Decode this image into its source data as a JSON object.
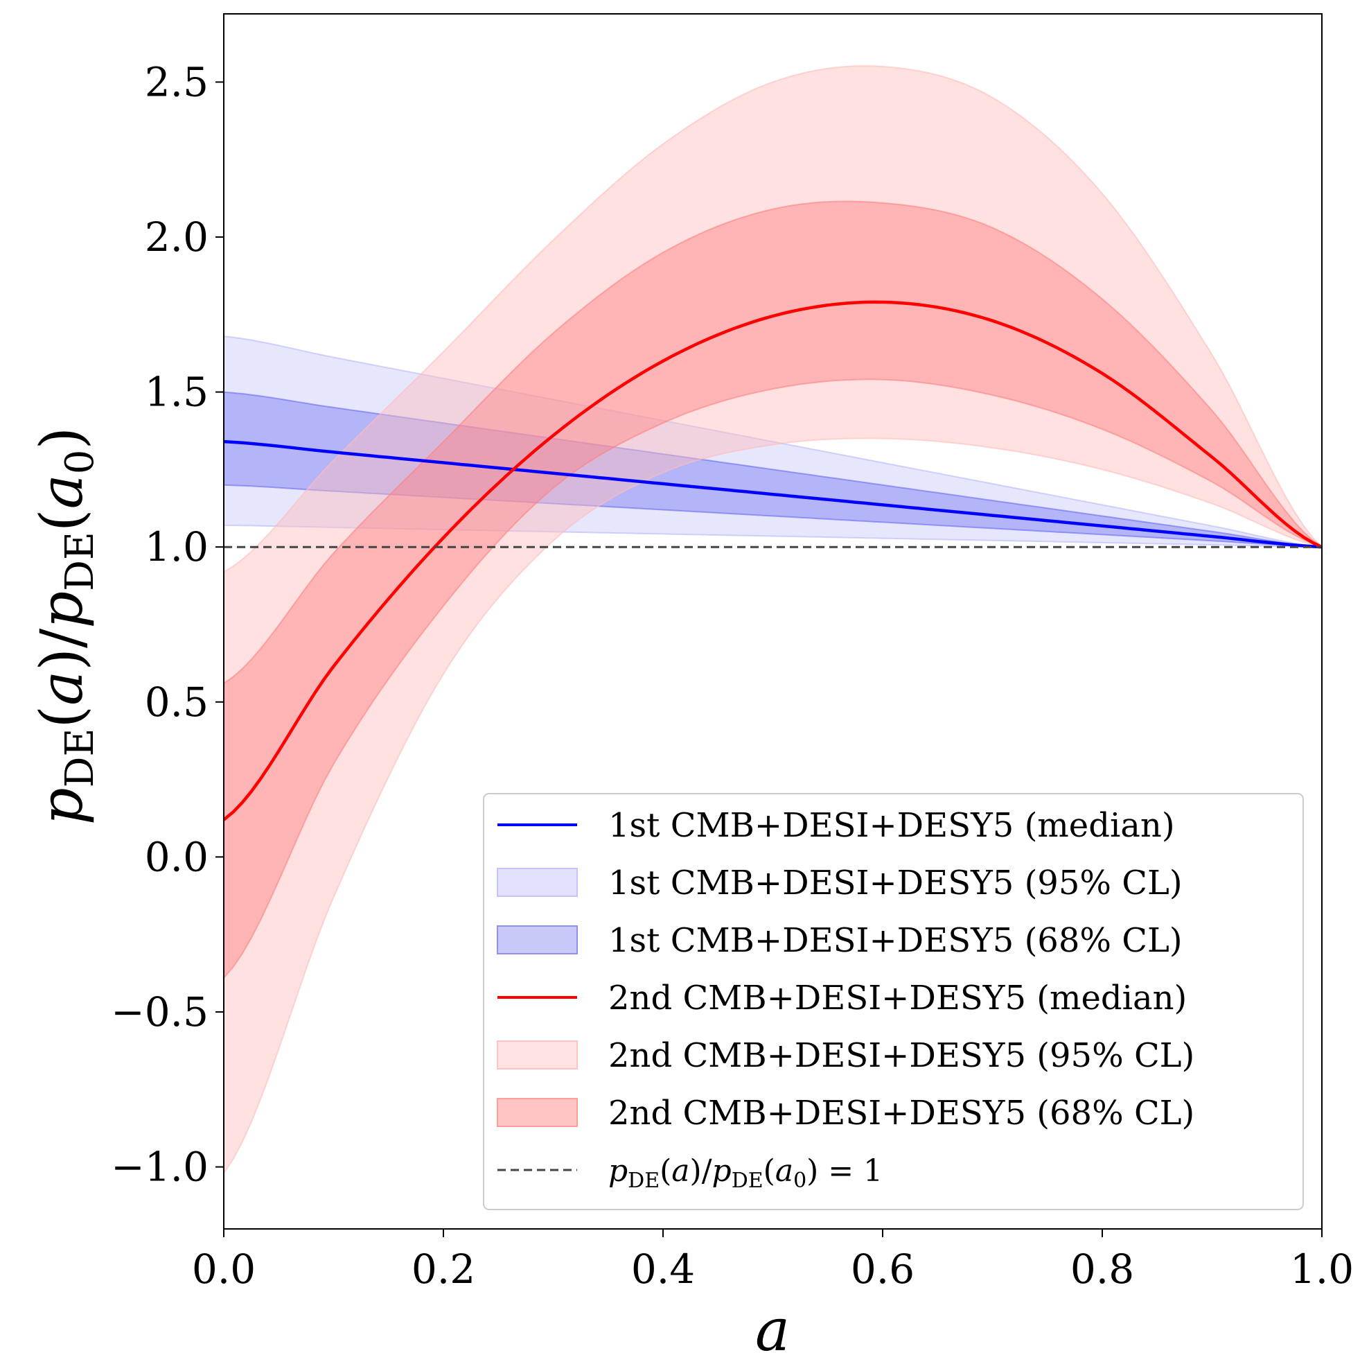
{
  "chart_data": {
    "type": "line",
    "xlabel": "a",
    "ylabel": {
      "p": "p",
      "sub": "DE",
      "a": "a",
      "sub0": "0"
    },
    "xlim": [
      0.0,
      1.0
    ],
    "ylim": [
      -1.2,
      2.72
    ],
    "xticks": [
      0.0,
      0.2,
      0.4,
      0.6,
      0.8,
      1.0
    ],
    "xtick_labels": [
      "0.0",
      "0.2",
      "0.4",
      "0.6",
      "0.8",
      "1.0"
    ],
    "yticks": [
      -1.0,
      -0.5,
      0.0,
      0.5,
      1.0,
      1.5,
      2.0,
      2.5
    ],
    "ytick_labels": [
      "−1.0",
      "−0.5",
      "0.0",
      "0.5",
      "1.0",
      "1.5",
      "2.0",
      "2.5"
    ],
    "x": [
      0.0,
      0.1,
      0.2,
      0.3,
      0.4,
      0.5,
      0.6,
      0.7,
      0.8,
      0.9,
      1.0
    ],
    "series": [
      {
        "name": "1st CMB+DESI+DESY5 (median)",
        "color": "#0000ff",
        "values": [
          1.34,
          1.306,
          1.272,
          1.238,
          1.204,
          1.17,
          1.136,
          1.102,
          1.068,
          1.034,
          1.0
        ]
      },
      {
        "name": "1st CMB+DESI+DESY5 (95% CL)",
        "color": "#9a9af5",
        "band": true,
        "opacity": 0.25,
        "lower": [
          1.07,
          1.063,
          1.056,
          1.049,
          1.042,
          1.035,
          1.028,
          1.021,
          1.014,
          1.007,
          1.0
        ],
        "upper": [
          1.68,
          1.612,
          1.544,
          1.476,
          1.408,
          1.34,
          1.272,
          1.204,
          1.136,
          1.068,
          1.0
        ]
      },
      {
        "name": "1st CMB+DESI+DESY5 (68% CL)",
        "color": "#5555f2",
        "band": true,
        "opacity": 0.35,
        "lower": [
          1.2,
          1.18,
          1.16,
          1.14,
          1.12,
          1.1,
          1.08,
          1.06,
          1.04,
          1.02,
          1.0
        ],
        "upper": [
          1.5,
          1.45,
          1.4,
          1.35,
          1.3,
          1.25,
          1.2,
          1.15,
          1.1,
          1.05,
          1.0
        ]
      },
      {
        "name": "2nd CMB+DESI+DESY5 (median)",
        "color": "#ff0000",
        "values": [
          0.12,
          0.615,
          1.03,
          1.36,
          1.6,
          1.745,
          1.79,
          1.73,
          1.56,
          1.29,
          1.0
        ]
      },
      {
        "name": "2nd CMB+DESI+DESY5 (95% CL)",
        "color": "#ffbcbc",
        "band": true,
        "opacity": 0.45,
        "lower": [
          -1.02,
          -0.13,
          0.59,
          1.02,
          1.24,
          1.33,
          1.35,
          1.32,
          1.25,
          1.14,
          1.0
        ],
        "upper": [
          0.92,
          1.28,
          1.63,
          1.99,
          2.3,
          2.5,
          2.55,
          2.45,
          2.14,
          1.62,
          1.0
        ]
      },
      {
        "name": "2nd CMB+DESI+DESY5 (68% CL)",
        "color": "#ff8080",
        "band": true,
        "opacity": 0.45,
        "lower": [
          -0.39,
          0.3,
          0.81,
          1.19,
          1.4,
          1.51,
          1.54,
          1.49,
          1.38,
          1.21,
          1.0
        ],
        "upper": [
          0.56,
          0.98,
          1.34,
          1.69,
          1.95,
          2.09,
          2.11,
          2.03,
          1.8,
          1.44,
          1.0
        ]
      },
      {
        "name": "p_DE(a)/p_DE(a0) = 1",
        "color": "#444444",
        "dashed": true,
        "values": [
          1.0,
          1.0,
          1.0,
          1.0,
          1.0,
          1.0,
          1.0,
          1.0,
          1.0,
          1.0,
          1.0
        ]
      }
    ],
    "legend": {
      "position": "lower-right",
      "items": [
        {
          "label": "1st CMB+DESI+DESY5 (median)",
          "kind": "line",
          "color": "#0000ff"
        },
        {
          "label": "1st CMB+DESI+DESY5 (95% CL)",
          "kind": "patch",
          "color": "#e2e2fc",
          "edge": "#c4c4f8"
        },
        {
          "label": "1st CMB+DESI+DESY5 (68% CL)",
          "kind": "patch",
          "color": "#c8c8f9",
          "edge": "#8f8ff3"
        },
        {
          "label": "2nd CMB+DESI+DESY5 (median)",
          "kind": "line",
          "color": "#ff0000"
        },
        {
          "label": "2nd CMB+DESI+DESY5 (95% CL)",
          "kind": "patch",
          "color": "#ffe3e3",
          "edge": "#ffc4c4"
        },
        {
          "label": "2nd CMB+DESI+DESY5 (68% CL)",
          "kind": "patch",
          "color": "#ffc4c4",
          "edge": "#ff9c9c"
        },
        {
          "label": "p_DE(a)/p_DE(a0) = 1",
          "kind": "dashed",
          "color": "#444444",
          "math": {
            "p": "p",
            "sub": "DE",
            "a": "a",
            "sub0": "0",
            "rhs": "1"
          }
        }
      ]
    }
  }
}
